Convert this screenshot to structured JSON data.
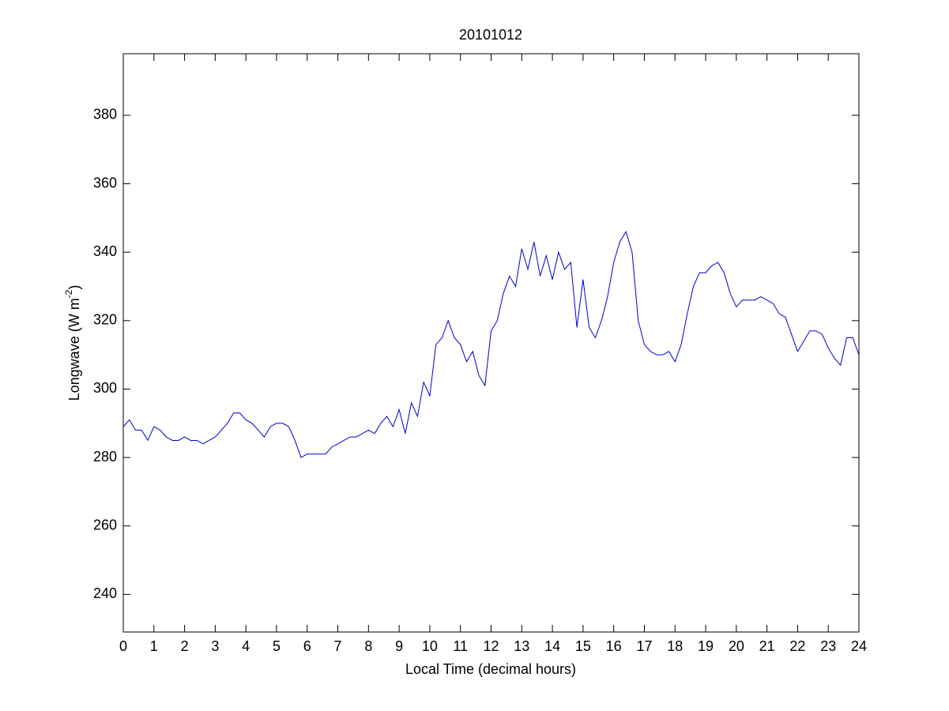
{
  "chart_data": {
    "type": "line",
    "title": "20101012",
    "xlabel": "Local Time (decimal hours)",
    "ylabel": [
      "Longwave (W m",
      "-2",
      ")"
    ],
    "x": [
      0,
      0.2,
      0.4,
      0.6,
      0.8,
      1,
      1.2,
      1.4,
      1.6,
      1.8,
      2,
      2.2,
      2.4,
      2.6,
      2.8,
      3,
      3.2,
      3.4,
      3.6,
      3.8,
      4,
      4.2,
      4.4,
      4.6,
      4.8,
      5,
      5.2,
      5.4,
      5.6,
      5.8,
      6,
      6.2,
      6.4,
      6.6,
      6.8,
      7,
      7.2,
      7.4,
      7.6,
      7.8,
      8,
      8.2,
      8.4,
      8.6,
      8.8,
      9,
      9.2,
      9.4,
      9.6,
      9.8,
      10,
      10.2,
      10.4,
      10.6,
      10.8,
      11,
      11.2,
      11.4,
      11.6,
      11.8,
      12,
      12.2,
      12.4,
      12.6,
      12.8,
      13,
      13.2,
      13.4,
      13.6,
      13.8,
      14,
      14.2,
      14.4,
      14.6,
      14.8,
      15,
      15.2,
      15.4,
      15.6,
      15.8,
      16,
      16.2,
      16.4,
      16.6,
      16.8,
      17,
      17.2,
      17.4,
      17.6,
      17.8,
      18,
      18.2,
      18.4,
      18.6,
      18.8,
      19,
      19.2,
      19.4,
      19.6,
      19.8,
      20,
      20.2,
      20.4,
      20.6,
      20.8,
      21,
      21.2,
      21.4,
      21.6,
      21.8,
      22,
      22.2,
      22.4,
      22.6,
      22.8,
      23,
      23.2,
      23.4,
      23.6,
      23.8,
      24
    ],
    "series": [
      {
        "color": "#0000cc",
        "values": [
          289,
          291,
          288,
          288,
          285,
          289,
          288,
          286,
          285,
          285,
          286,
          285,
          285,
          284,
          285,
          286,
          288,
          290,
          293,
          293,
          291,
          290,
          288,
          286,
          289,
          290,
          290,
          289,
          285,
          280,
          281,
          281,
          281,
          281,
          283,
          284,
          285,
          286,
          286,
          287,
          288,
          287,
          290,
          292,
          289,
          294,
          287,
          296,
          292,
          302,
          298,
          313,
          315,
          320,
          315,
          313,
          308,
          311,
          304,
          301,
          317,
          320,
          328,
          333,
          330,
          341,
          335,
          343,
          333,
          339,
          332,
          340,
          335,
          337,
          318,
          332,
          318,
          315,
          320,
          327,
          337,
          343,
          346,
          340,
          320,
          313,
          311,
          310,
          310,
          311,
          308,
          313,
          322,
          330,
          334,
          334,
          336,
          337,
          334,
          328,
          324,
          326,
          326,
          326,
          327,
          326,
          325,
          322,
          321,
          316,
          311,
          314,
          317,
          317,
          316,
          312,
          309,
          307,
          315,
          315,
          310
        ]
      }
    ],
    "xlim": [
      0,
      24
    ],
    "ylim": [
      229,
      398
    ],
    "xticks": [
      0,
      1,
      2,
      3,
      4,
      5,
      6,
      7,
      8,
      9,
      10,
      11,
      12,
      13,
      14,
      15,
      16,
      17,
      18,
      19,
      20,
      21,
      22,
      23,
      24
    ],
    "yticks": [
      240,
      260,
      280,
      300,
      320,
      340,
      360,
      380
    ]
  }
}
